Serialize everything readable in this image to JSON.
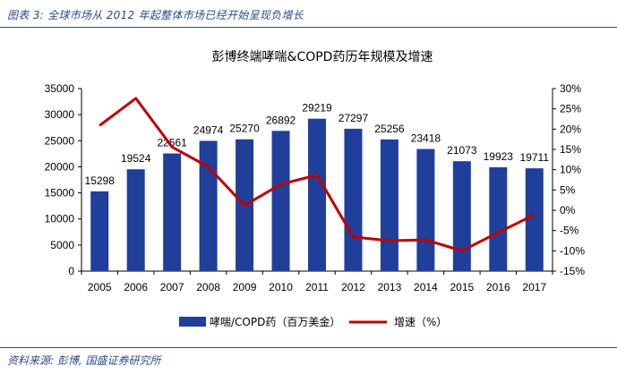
{
  "header": {
    "caption": "图表 3:  全球市场从 2012 年起整体市场已经开始呈现负增长"
  },
  "footer": {
    "source": "资料来源: 彭博, 国盛证券研究所"
  },
  "colors": {
    "bar": "#1f3f9a",
    "line": "#c00000",
    "text_blue": "#2a4a8a"
  },
  "chart_data": {
    "type": "bar+line",
    "title": "彭博终端哮喘&COPD药历年规模及增速",
    "categories": [
      "2005",
      "2006",
      "2007",
      "2008",
      "2009",
      "2010",
      "2011",
      "2012",
      "2013",
      "2014",
      "2015",
      "2016",
      "2017"
    ],
    "series": [
      {
        "name": "哮喘/COPD药（百万美金）",
        "type": "bar",
        "axis": "left",
        "values": [
          15298,
          19524,
          22561,
          24974,
          25270,
          26892,
          29219,
          27297,
          25256,
          23418,
          21073,
          19923,
          19711
        ]
      },
      {
        "name": "增速（%）",
        "type": "line",
        "axis": "right",
        "values": [
          20.9,
          27.6,
          15.6,
          10.7,
          1.2,
          6.4,
          8.7,
          -6.6,
          -7.5,
          -7.3,
          -10.0,
          -5.5,
          -1.1
        ]
      }
    ],
    "y_left": {
      "min": 0,
      "max": 35000,
      "step": 5000,
      "ticks": [
        "0",
        "5000",
        "10000",
        "15000",
        "20000",
        "25000",
        "30000",
        "35000"
      ]
    },
    "y_right": {
      "min": -15,
      "max": 30,
      "step": 5,
      "ticks": [
        "-15%",
        "-10%",
        "-5%",
        "0%",
        "5%",
        "10%",
        "15%",
        "20%",
        "25%",
        "30%"
      ]
    },
    "data_labels": [
      "15298",
      "19524",
      "22561",
      "24974",
      "25270",
      "26892",
      "29219",
      "27297",
      "25256",
      "23418",
      "21073",
      "19923",
      "19711"
    ],
    "legend": {
      "position": "bottom",
      "bar_label": "哮喘/COPD药（百万美金）",
      "line_label": "增速（%）"
    }
  }
}
